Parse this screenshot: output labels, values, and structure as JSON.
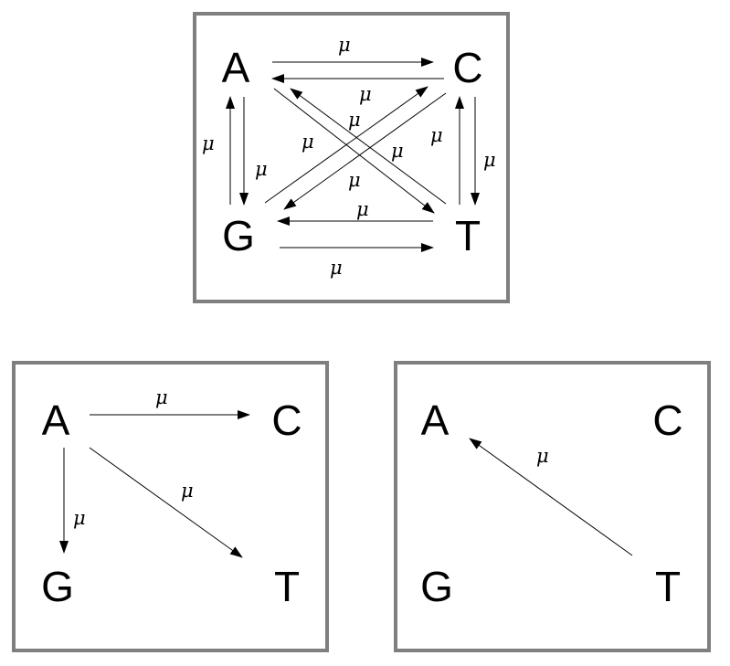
{
  "colors": {
    "box_border": "#7f7f7f",
    "ink": "#000000",
    "background": "#ffffff"
  },
  "panels": [
    {
      "id": "top",
      "nodes": [
        "A",
        "C",
        "G",
        "T"
      ],
      "rate_label": "μ",
      "transitions": [
        {
          "from": "A",
          "to": "C",
          "label": "μ"
        },
        {
          "from": "C",
          "to": "A",
          "label": "μ"
        },
        {
          "from": "G",
          "to": "A",
          "label": "μ"
        },
        {
          "from": "A",
          "to": "G",
          "label": "μ"
        },
        {
          "from": "C",
          "to": "T",
          "label": "μ"
        },
        {
          "from": "T",
          "to": "C",
          "label": "μ"
        },
        {
          "from": "T",
          "to": "G",
          "label": "μ"
        },
        {
          "from": "G",
          "to": "T",
          "label": "μ"
        },
        {
          "from": "A",
          "to": "T",
          "label": "μ"
        },
        {
          "from": "T",
          "to": "A",
          "label": "μ"
        },
        {
          "from": "G",
          "to": "C",
          "label": "μ"
        },
        {
          "from": "C",
          "to": "G",
          "label": "μ"
        }
      ]
    },
    {
      "id": "bottom-left",
      "nodes": [
        "A",
        "C",
        "G",
        "T"
      ],
      "transitions": [
        {
          "from": "A",
          "to": "C",
          "label": "μ"
        },
        {
          "from": "A",
          "to": "T",
          "label": "μ"
        },
        {
          "from": "A",
          "to": "G",
          "label": "μ"
        }
      ]
    },
    {
      "id": "bottom-right",
      "nodes": [
        "A",
        "C",
        "G",
        "T"
      ],
      "transitions": [
        {
          "from": "T",
          "to": "A",
          "label": "μ"
        }
      ]
    }
  ]
}
